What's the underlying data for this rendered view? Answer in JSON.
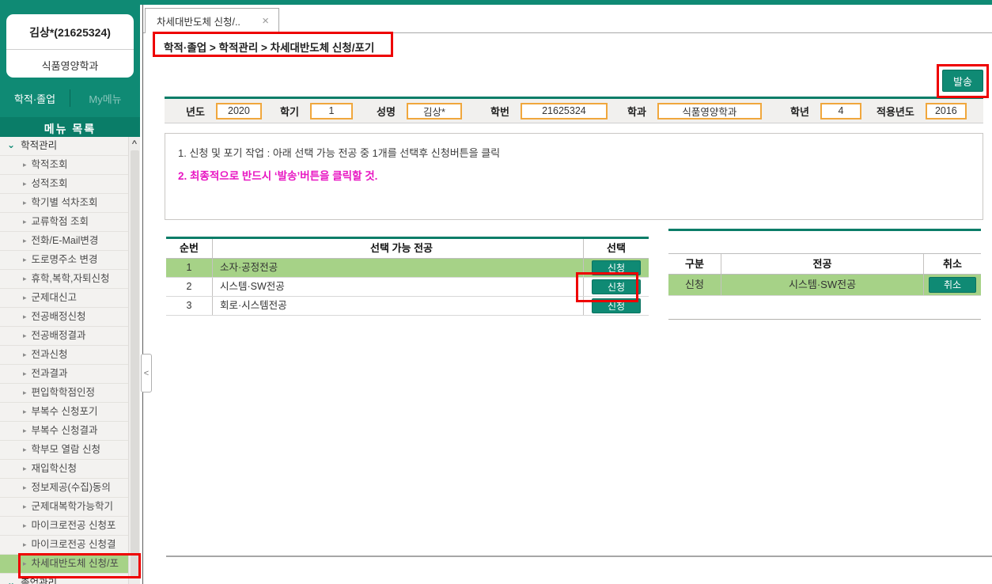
{
  "colors": {
    "teal_primary": "#0f8a74",
    "teal_dark": "#0a7d68",
    "highlight_green": "#a6d287",
    "annotation_red": "#ee0000",
    "notice_magenta": "#e816c2",
    "input_border_orange": "#f0a73d"
  },
  "icons": {
    "section_chevron": "⌄",
    "item_arrow": "▸",
    "scroll_up": "∧"
  },
  "sidebar": {
    "user_name": "김상*(21625324)",
    "user_department": "식품영양학과",
    "tabs": [
      "학적·졸업",
      "My메뉴"
    ],
    "menu_header": "메뉴 목록",
    "section_label": "학적관리",
    "items": [
      "학적조회",
      "성적조회",
      "학기별 석차조회",
      "교류학점 조회",
      "전화/E-Mail변경",
      "도로명주소 변경",
      "휴학,복학,자퇴신청",
      "군제대신고",
      "전공배정신청",
      "전공배정결과",
      "전과신청",
      "전과결과",
      "편입학학점인정",
      "부복수 신청포기",
      "부복수 신청결과",
      "학부모 열람 신청",
      "재입학신청",
      "정보제공(수집)동의",
      "군제대복학가능학기",
      "마이크로전공 신청포",
      "마이크로전공 신청결",
      "차세대반도체 신청/포"
    ],
    "active_index": 21,
    "bottom_section": "졸업관리",
    "collapse_handle": "<"
  },
  "tab": {
    "title": "차세대반도체 신청/..",
    "close": "×"
  },
  "breadcrumb": "학적·졸업 > 학적관리 > 차세대반도체 신청/포기",
  "send_button_label": "발송",
  "form": {
    "fields": [
      {
        "key": "year",
        "label": "년도",
        "value": "2020"
      },
      {
        "key": "semester",
        "label": "학기",
        "value": "1"
      },
      {
        "key": "name",
        "label": "성명",
        "value": "김상*"
      },
      {
        "key": "student-id",
        "label": "학번",
        "value": "21625324"
      },
      {
        "key": "department",
        "label": "학과",
        "value": "식품영양학과"
      },
      {
        "key": "grade",
        "label": "학년",
        "value": "4"
      },
      {
        "key": "applied-year",
        "label": "적용년도",
        "value": "2016"
      }
    ]
  },
  "instructions": {
    "line1": "1. 신청 및 포기 작업 : 아래 선택 가능 전공 중 1개를 선택후 신청버튼을 클릭",
    "line2": "2. 최종적으로 반드시 ‘발송’버튼을 클릭할 것."
  },
  "available_table": {
    "headers": [
      "순번",
      "선택 가능 전공",
      "선택"
    ],
    "apply_label": "신청",
    "rows": [
      {
        "no": "1",
        "major": "소자·공정전공",
        "highlighted": true
      },
      {
        "no": "2",
        "major": "시스템·SW전공",
        "highlighted": false
      },
      {
        "no": "3",
        "major": "회로·시스템전공",
        "highlighted": false
      }
    ]
  },
  "applied_table": {
    "headers": [
      "구분",
      "전공",
      "취소"
    ],
    "cancel_label": "취소",
    "rows": [
      {
        "type": "신청",
        "major": "시스템·SW전공"
      }
    ]
  }
}
